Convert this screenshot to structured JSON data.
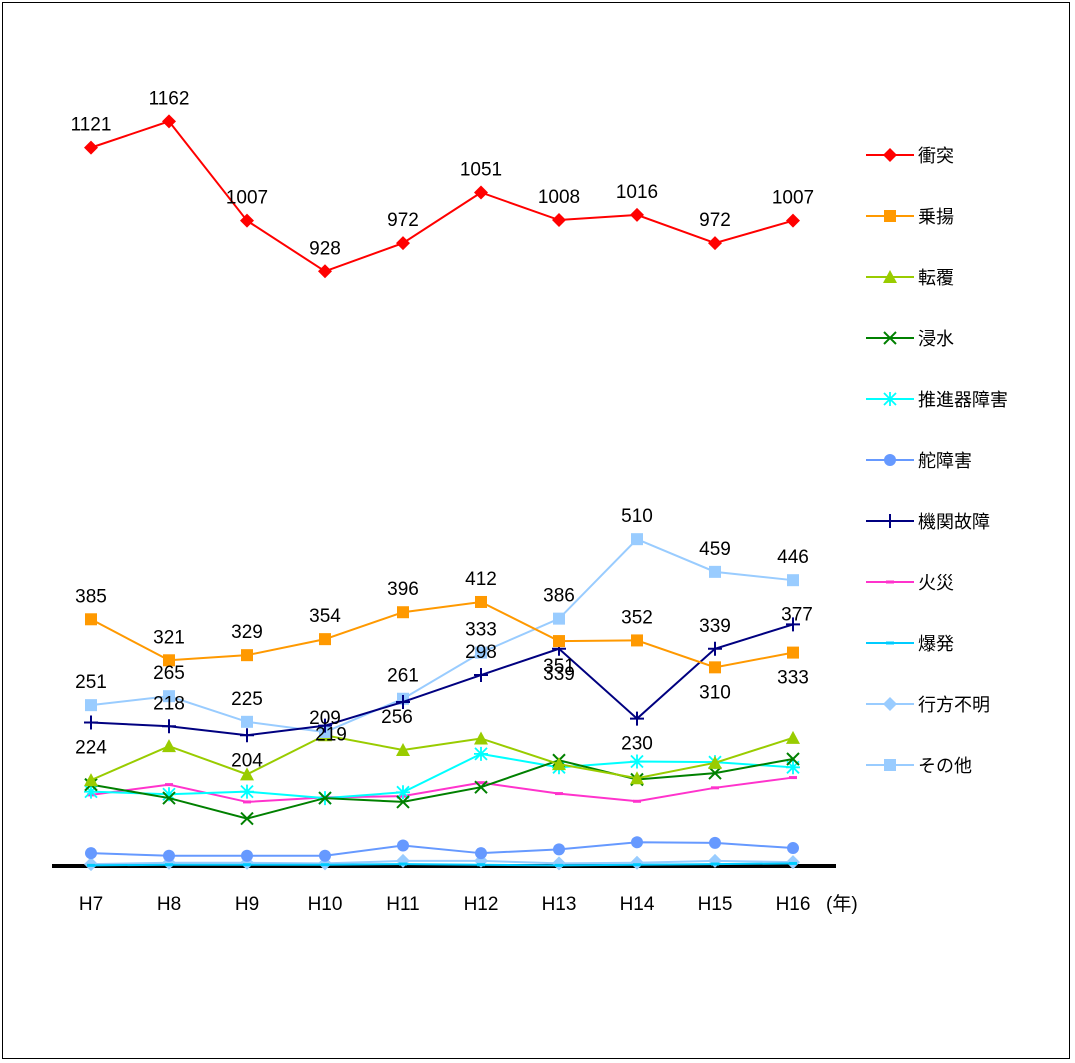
{
  "chart_data": {
    "type": "line",
    "categories": [
      "H7",
      "H8",
      "H9",
      "H10",
      "H11",
      "H12",
      "H13",
      "H14",
      "H15",
      "H16"
    ],
    "x_unit": "(年)",
    "ylim": [
      0,
      1200
    ],
    "grid": false,
    "legend_position": "right",
    "series": [
      {
        "name": "衝突",
        "color": "#ff0000",
        "marker": "diamond",
        "labeled": true,
        "label_pos": "above",
        "values": [
          1121,
          1162,
          1007,
          928,
          972,
          1051,
          1008,
          1016,
          972,
          1007
        ]
      },
      {
        "name": "乗揚",
        "color": "#ff9900",
        "marker": "square",
        "labeled": true,
        "label_pos": "mixed",
        "values": [
          385,
          321,
          329,
          354,
          396,
          412,
          351,
          352,
          310,
          333
        ]
      },
      {
        "name": "転覆",
        "color": "#99cc00",
        "marker": "triangle",
        "values": [
          134,
          187,
          143,
          204,
          181,
          199,
          159,
          137,
          161,
          200
        ]
      },
      {
        "name": "浸水",
        "color": "#008000",
        "marker": "x",
        "values": [
          127,
          106,
          74,
          106,
          100,
          123,
          165,
          135,
          145,
          167
        ]
      },
      {
        "name": "推進器障害",
        "color": "#00ffff",
        "marker": "star",
        "values": [
          116,
          112,
          116,
          106,
          115,
          175,
          154,
          163,
          162,
          154
        ]
      },
      {
        "name": "舵障害",
        "color": "#6699ff",
        "marker": "circle",
        "values": [
          20,
          16,
          16,
          16,
          32,
          20,
          26,
          37,
          36,
          28
        ]
      },
      {
        "name": "機関故障",
        "color": "#000080",
        "marker": "plus",
        "labeled": true,
        "label_pos": "mixed",
        "values": [
          224,
          218,
          204,
          219,
          256,
          298,
          339,
          230,
          339,
          377
        ]
      },
      {
        "name": "火災",
        "color": "#ff33cc",
        "marker": "dash",
        "values": [
          111,
          127,
          100,
          107,
          109,
          130,
          113,
          101,
          122,
          138
        ]
      },
      {
        "name": "爆発",
        "color": "#00ccff",
        "marker": "dash",
        "values": [
          1,
          2,
          2,
          2,
          3,
          2,
          1,
          2,
          3,
          4
        ]
      },
      {
        "name": "行方不明",
        "color": "#99ccff",
        "marker": "diamond",
        "values": [
          3,
          5,
          5,
          4,
          8,
          8,
          4,
          5,
          8,
          6
        ]
      },
      {
        "name": "その他",
        "color": "#99ccff",
        "marker": "square",
        "labeled": true,
        "label_pos": "above",
        "values": [
          251,
          265,
          225,
          209,
          261,
          333,
          386,
          510,
          459,
          446
        ]
      }
    ]
  }
}
